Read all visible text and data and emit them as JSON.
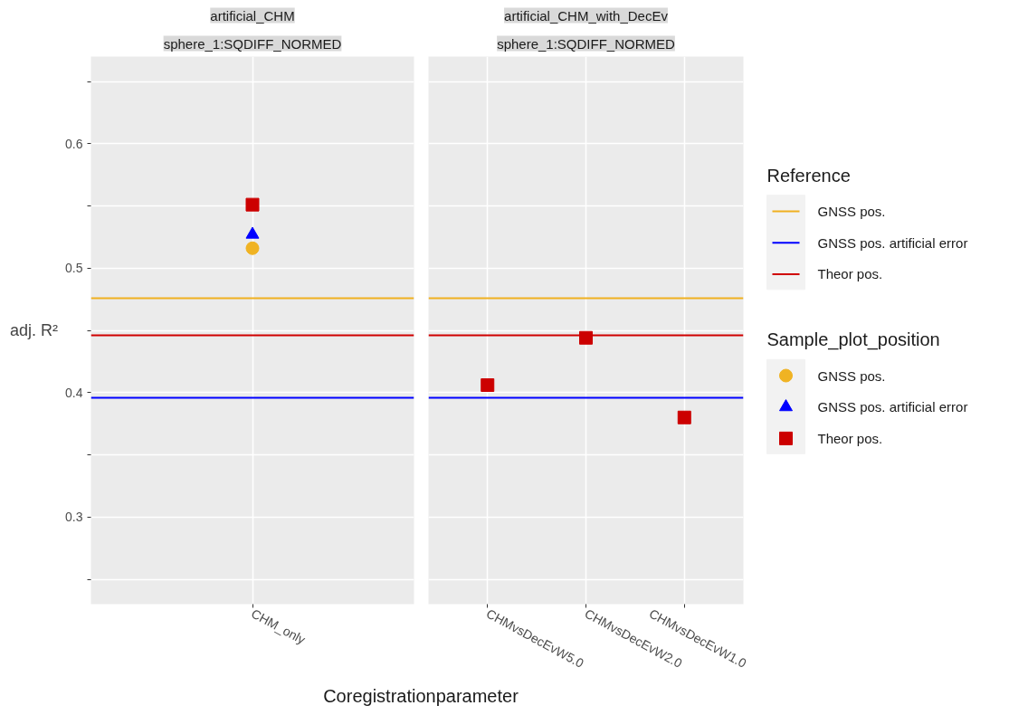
{
  "chart_data": [
    {
      "type": "scatter",
      "title": "artificial_CHM",
      "subtitle": "sphere_1:SQDIFF_NORMED",
      "ylabel": "adj. R²",
      "xlabel": "Coregistrationparameter",
      "legend_title": "Reference",
      "legend": "right",
      "grid": true,
      "categories": [
        "CHM_only"
      ],
      "ylim": [
        0.23,
        0.67
      ],
      "yticks": [
        {
          "value": 0.25,
          "label": null
        },
        0.3,
        {
          "value": 0.35,
          "label": null
        },
        0.4,
        {
          "value": 0.45,
          "label": null
        },
        0.5,
        {
          "value": 0.55,
          "label": null
        },
        0.6,
        {
          "value": 0.65,
          "label": null
        }
      ],
      "ref_lines": [
        {
          "axis": "y",
          "value": 0.476,
          "label": "GNSS pos.",
          "color": "#f0b020"
        },
        {
          "axis": "y",
          "value": 0.396,
          "label": "GNSS pos. artificial error",
          "color": "#0000ff"
        },
        {
          "axis": "y",
          "value": 0.446,
          "label": "Theor pos.",
          "color": "#d00000"
        }
      ],
      "series": [
        {
          "name": "GNSS pos.",
          "color": "#f0b323",
          "marker": "circle",
          "values": [
            0.516
          ]
        },
        {
          "name": "GNSS pos. artificial error",
          "color": "#0000ff",
          "marker": "triangle",
          "values": [
            0.527
          ]
        },
        {
          "name": "Theor pos.",
          "color": "#cc0000",
          "marker": "square",
          "values": [
            0.551
          ]
        }
      ]
    },
    {
      "type": "scatter",
      "title": "artificial_CHM_with_DecEv",
      "subtitle": "sphere_1:SQDIFF_NORMED",
      "legend_title": "Sample_plot_position",
      "grid": true,
      "tick_labels": "x",
      "categories": [
        "CHMvsDecEvW5.0",
        "CHMvsDecEvW2.0",
        "CHMvsDecEvW1.0"
      ],
      "ylim": [
        0.23,
        0.67
      ],
      "yticks": [
        {
          "value": 0.25,
          "label": null
        },
        0.3,
        {
          "value": 0.35,
          "label": null
        },
        0.4,
        {
          "value": 0.45,
          "label": null
        },
        0.5,
        {
          "value": 0.55,
          "label": null
        },
        0.6,
        {
          "value": 0.65,
          "label": null
        }
      ],
      "ref_lines": [
        {
          "axis": "y",
          "value": 0.476,
          "color": "#f0b020"
        },
        {
          "axis": "y",
          "value": 0.396,
          "color": "#0000ff"
        },
        {
          "axis": "y",
          "value": 0.446,
          "color": "#d00000"
        }
      ],
      "series": [
        {
          "color": "#cc0000",
          "marker": "square",
          "values": [
            0.406,
            0.444,
            0.38
          ]
        }
      ]
    }
  ]
}
